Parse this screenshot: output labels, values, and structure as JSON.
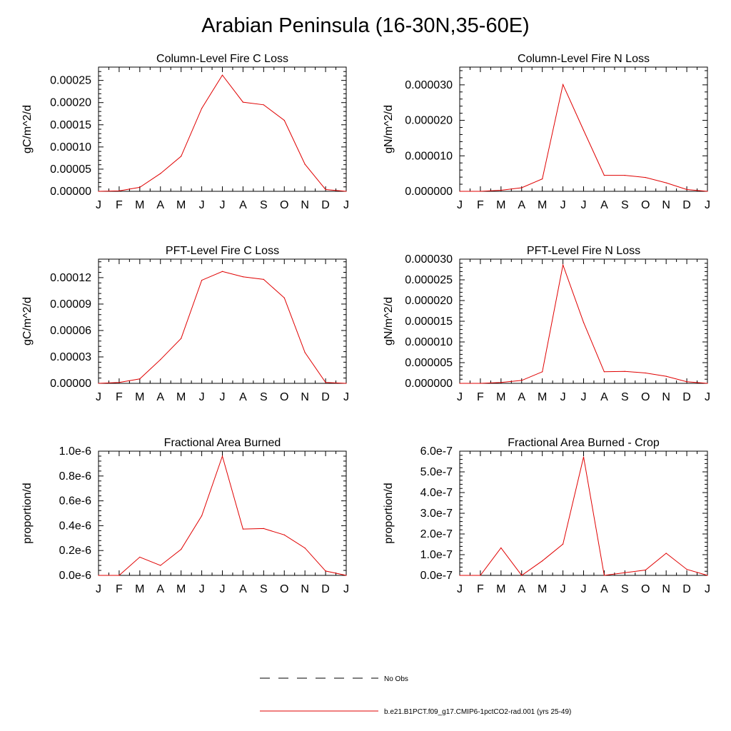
{
  "title": "Arabian Peninsula (16-30N,35-60E)",
  "colors": {
    "model": "#e00000",
    "obs": "#000000",
    "axis": "#000000"
  },
  "legend": [
    {
      "label": "No Obs",
      "style": "dashed",
      "color": "#000000"
    },
    {
      "label": "b.e21.B1PCT.f09_g17.CMIP6-1pctCO2-rad.001 (yrs 25-49)",
      "style": "solid",
      "color": "#e00000"
    }
  ],
  "chart_data": [
    {
      "type": "line",
      "title": "Column-Level Fire C Loss",
      "ylabel": "gC/m^2/d",
      "categories": [
        "J",
        "F",
        "M",
        "A",
        "M",
        "J",
        "J",
        "A",
        "S",
        "O",
        "N",
        "D",
        "J"
      ],
      "ylim": [
        0,
        0.00028
      ],
      "yticks": [
        0,
        5e-05,
        0.0001,
        0.00015,
        0.0002,
        0.00025
      ],
      "ytick_labels": [
        "0.00000",
        "0.00005",
        "0.00010",
        "0.00015",
        "0.00020",
        "0.00025"
      ],
      "series": [
        {
          "values": [
            0,
            1e-06,
            9e-06,
            4e-05,
            7.9e-05,
            0.000187,
            0.000262,
            0.000201,
            0.000195,
            0.00016,
            6.1e-05,
            4e-06,
            0
          ]
        }
      ]
    },
    {
      "type": "line",
      "title": "Column-Level Fire N Loss",
      "ylabel": "gN/m^2/d",
      "categories": [
        "J",
        "F",
        "M",
        "A",
        "M",
        "J",
        "J",
        "A",
        "S",
        "O",
        "N",
        "D",
        "J"
      ],
      "ylim": [
        0,
        3.5e-05
      ],
      "yticks": [
        0,
        1e-05,
        2e-05,
        3e-05
      ],
      "ytick_labels": [
        "0.000000",
        "0.000010",
        "0.000020",
        "0.000030"
      ],
      "series": [
        {
          "values": [
            0,
            0,
            3e-07,
            1e-06,
            3.5e-06,
            3.01e-05,
            1.72e-05,
            4.5e-06,
            4.5e-06,
            3.9e-06,
            2.4e-06,
            5e-07,
            0
          ]
        }
      ]
    },
    {
      "type": "line",
      "title": "PFT-Level Fire C Loss",
      "ylabel": "gC/m^2/d",
      "categories": [
        "J",
        "F",
        "M",
        "A",
        "M",
        "J",
        "J",
        "A",
        "S",
        "O",
        "N",
        "D",
        "J"
      ],
      "ylim": [
        0,
        0.000141
      ],
      "yticks": [
        0,
        3e-05,
        6e-05,
        9e-05,
        0.00012
      ],
      "ytick_labels": [
        "0.00000",
        "0.00003",
        "0.00006",
        "0.00009",
        "0.00012"
      ],
      "series": [
        {
          "values": [
            0,
            1e-06,
            5e-06,
            2.7e-05,
            5.1e-05,
            0.000117,
            0.000127,
            0.000121,
            0.000118,
            9.7e-05,
            3.5e-05,
            1e-06,
            0
          ]
        }
      ]
    },
    {
      "type": "line",
      "title": "PFT-Level Fire N Loss",
      "ylabel": "gN/m^2/d",
      "categories": [
        "J",
        "F",
        "M",
        "A",
        "M",
        "J",
        "J",
        "A",
        "S",
        "O",
        "N",
        "D",
        "J"
      ],
      "ylim": [
        0,
        3e-05
      ],
      "yticks": [
        0,
        5e-06,
        1e-05,
        1.5e-05,
        2e-05,
        2.5e-05,
        3e-05
      ],
      "ytick_labels": [
        "0.000000",
        "0.000005",
        "0.000010",
        "0.000015",
        "0.000020",
        "0.000025",
        "0.000030"
      ],
      "series": [
        {
          "values": [
            0,
            0,
            2e-07,
            7e-07,
            2.8e-06,
            2.86e-05,
            1.47e-05,
            2.8e-06,
            2.9e-06,
            2.5e-06,
            1.7e-06,
            4e-07,
            0
          ]
        }
      ]
    },
    {
      "type": "line",
      "title": "Fractional Area Burned",
      "ylabel": "proportion/d",
      "categories": [
        "J",
        "F",
        "M",
        "A",
        "M",
        "J",
        "J",
        "A",
        "S",
        "O",
        "N",
        "D",
        "J"
      ],
      "ylim": [
        0,
        1e-06
      ],
      "yticks": [
        0,
        2e-07,
        4e-07,
        6e-07,
        8e-07,
        1e-06
      ],
      "ytick_labels": [
        "0.0e-6",
        "0.2e-6",
        "0.4e-6",
        "0.6e-6",
        "0.8e-6",
        "1.0e-6"
      ],
      "series": [
        {
          "values": [
            0,
            0,
            1.47e-07,
            8e-08,
            2.1e-07,
            4.8e-07,
            9.6e-07,
            3.73e-07,
            3.77e-07,
            3.26e-07,
            2.2e-07,
            3.5e-08,
            0
          ]
        }
      ]
    },
    {
      "type": "line",
      "title": "Fractional Area Burned - Crop",
      "ylabel": "proportion/d",
      "categories": [
        "J",
        "F",
        "M",
        "A",
        "M",
        "J",
        "J",
        "A",
        "S",
        "O",
        "N",
        "D",
        "J"
      ],
      "ylim": [
        0,
        6e-07
      ],
      "yticks": [
        0,
        1e-07,
        2e-07,
        3e-07,
        4e-07,
        5e-07,
        6e-07
      ],
      "ytick_labels": [
        "0.0e-7",
        "1.0e-7",
        "2.0e-7",
        "3.0e-7",
        "4.0e-7",
        "5.0e-7",
        "6.0e-7"
      ],
      "series": [
        {
          "values": [
            0,
            0,
            1.33e-07,
            0,
            7e-08,
            1.51e-07,
            5.72e-07,
            0,
            1.3e-08,
            2.6e-08,
            1.07e-07,
            2.9e-08,
            0
          ]
        }
      ]
    }
  ]
}
